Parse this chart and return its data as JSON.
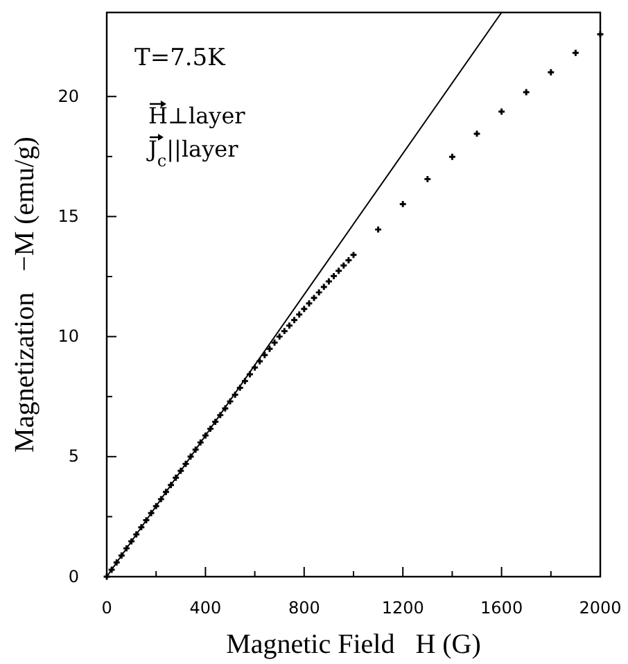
{
  "chart_data": {
    "type": "scatter",
    "xlabel": "Magnetic Field   H (G)",
    "ylabel": "Magnetization   −M (emu/g)",
    "annotations": [
      "T=7.5K",
      "H⊥layer",
      "J$_{c}$||layer"
    ],
    "xlim": [
      0,
      2000
    ],
    "ylim": [
      0,
      23.5
    ],
    "xticks": [
      0,
      {
        "value": 200,
        "label": null
      },
      400,
      {
        "value": 600,
        "label": null
      },
      800,
      {
        "value": 1000,
        "label": null
      },
      1200,
      {
        "value": 1400,
        "label": null
      },
      1600,
      {
        "value": 1800,
        "label": null
      },
      2000
    ],
    "yticks": [
      0,
      {
        "value": 2.5,
        "label": null
      },
      5,
      {
        "value": 7.5,
        "label": null
      },
      10,
      {
        "value": 12.5,
        "label": null
      },
      15,
      {
        "value": 17.5,
        "label": null
      },
      20
    ],
    "grid": false,
    "marker": "cross",
    "series": [
      {
        "type": "scatter",
        "color": "#000000",
        "x": [
          0,
          20,
          40,
          60,
          80,
          100,
          120,
          140,
          160,
          180,
          200,
          220,
          240,
          260,
          280,
          300,
          320,
          340,
          360,
          380,
          400,
          420,
          440,
          460,
          480,
          500,
          520,
          540,
          560,
          580,
          600,
          620,
          640,
          660,
          680,
          700,
          720,
          740,
          760,
          780,
          800,
          820,
          840,
          860,
          880,
          900,
          920,
          940,
          960,
          980,
          1000,
          1100,
          1200,
          1300,
          1400,
          1500,
          1600,
          1700,
          1800,
          1900,
          2000
        ],
        "values": [
          0,
          0.29,
          0.59,
          0.88,
          1.18,
          1.47,
          1.76,
          2.06,
          2.35,
          2.65,
          2.94,
          3.23,
          3.53,
          3.82,
          4.12,
          4.41,
          4.7,
          5.0,
          5.29,
          5.59,
          5.88,
          6.16,
          6.45,
          6.73,
          7.01,
          7.3,
          7.58,
          7.87,
          8.15,
          8.43,
          8.71,
          8.97,
          9.23,
          9.49,
          9.75,
          10.0,
          10.23,
          10.46,
          10.69,
          10.92,
          11.15,
          11.38,
          11.61,
          11.84,
          12.07,
          12.3,
          12.52,
          12.74,
          12.96,
          13.18,
          13.4,
          14.46,
          15.52,
          16.56,
          17.49,
          18.45,
          19.37,
          20.18,
          21.01,
          21.82,
          22.59
        ]
      },
      {
        "type": "line",
        "color": "#000000",
        "x": [
          0,
          1600
        ],
        "values": [
          0,
          23.5
        ],
        "marker": "none",
        "line_style": "solid"
      }
    ]
  }
}
